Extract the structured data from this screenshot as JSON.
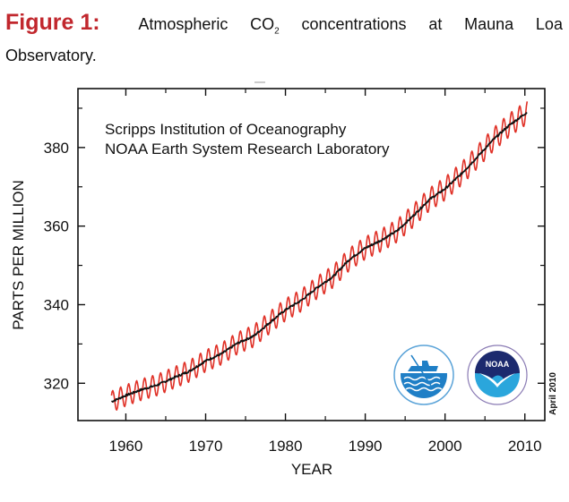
{
  "caption": {
    "figure_label": "Figure 1:",
    "words_line1": [
      "Atmospheric",
      "CO",
      "concentrations",
      "at",
      "Mauna",
      "Loa"
    ],
    "co2_subscript": "2",
    "line2": "Observatory."
  },
  "chart_data": {
    "type": "line",
    "title": "",
    "xlabel": "YEAR",
    "ylabel": "PARTS PER MILLION",
    "xlim": [
      1954,
      2012.5
    ],
    "ylim": [
      310.5,
      395
    ],
    "x_ticks": [
      1960,
      1970,
      1980,
      1990,
      2000,
      2010
    ],
    "x_minor_ticks": [
      1965,
      1975,
      1985,
      1995,
      2005
    ],
    "y_ticks": [
      320,
      340,
      360,
      380
    ],
    "y_minor_ticks": [
      330,
      350,
      370,
      390
    ],
    "grid": false,
    "annotations": [
      "Scripps Institution of Oceanography",
      "NOAA Earth System Research Laboratory"
    ],
    "date_stamp": "April 2010",
    "logos": [
      "Scripps Institution of Oceanography logo",
      "NOAA logo"
    ],
    "series": [
      {
        "name": "Monthly mean (seasonal cycle)",
        "color": "#e03127",
        "style": "oscillating monthly values around trend, seasonal amplitude ~3 ppm",
        "start_year": 1958.2,
        "end_year": 2010.3,
        "seasonal_amplitude": 3.0
      },
      {
        "name": "Seasonally adjusted trend",
        "color": "#111111",
        "x": [
          1958.2,
          1960,
          1962,
          1964,
          1966,
          1968,
          1970,
          1972,
          1974,
          1976,
          1978,
          1980,
          1982,
          1984,
          1986,
          1988,
          1990,
          1992,
          1994,
          1996,
          1998,
          2000,
          2002,
          2004,
          2006,
          2008,
          2010.3
        ],
        "values": [
          315.3,
          316.9,
          318.4,
          319.6,
          321.4,
          323.1,
          325.7,
          327.5,
          330.2,
          332.0,
          335.4,
          338.7,
          341.1,
          344.4,
          347.2,
          351.5,
          354.4,
          356.4,
          358.8,
          362.6,
          366.7,
          369.5,
          373.2,
          377.5,
          381.9,
          385.6,
          389.0
        ]
      }
    ]
  }
}
